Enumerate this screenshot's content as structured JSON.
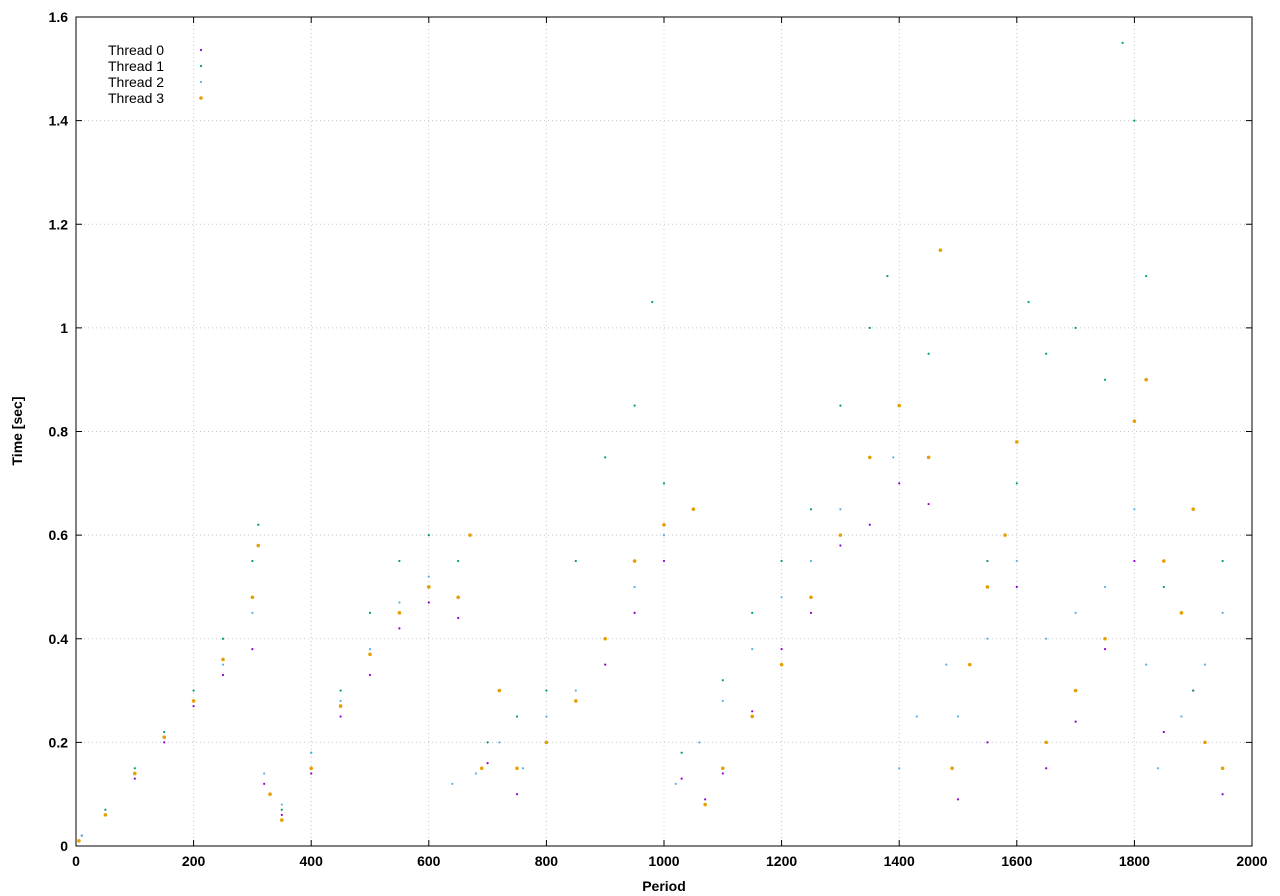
{
  "chart_data": {
    "type": "scatter",
    "title": "",
    "xlabel": "Period",
    "ylabel": "Time [sec]",
    "xlim": [
      0,
      2000
    ],
    "ylim": [
      0,
      1.6
    ],
    "xticks": [
      0,
      200,
      400,
      600,
      800,
      1000,
      1200,
      1400,
      1600,
      1800,
      2000
    ],
    "yticks": [
      0,
      0.2,
      0.4,
      0.6,
      0.8,
      1,
      1.2,
      1.4,
      1.6
    ],
    "xtick_labels": [
      "0",
      "200",
      "400",
      "600",
      "800",
      "1000",
      "1200",
      "1400",
      "1600",
      "1800",
      "2000"
    ],
    "ytick_labels": [
      "0",
      "0.2",
      "0.4",
      "0.6",
      "0.8",
      "1",
      "1.2",
      "1.4",
      "1.6"
    ],
    "grid": true,
    "legend_position": "top-left",
    "series": [
      {
        "name": "Thread 0",
        "color": "#9400d3",
        "marker": "dot",
        "points": [
          [
            10,
            0.02
          ],
          [
            50,
            0.06
          ],
          [
            100,
            0.13
          ],
          [
            150,
            0.2
          ],
          [
            200,
            0.27
          ],
          [
            250,
            0.33
          ],
          [
            300,
            0.38
          ],
          [
            320,
            0.12
          ],
          [
            350,
            0.06
          ],
          [
            400,
            0.14
          ],
          [
            450,
            0.25
          ],
          [
            500,
            0.33
          ],
          [
            550,
            0.42
          ],
          [
            600,
            0.47
          ],
          [
            650,
            0.44
          ],
          [
            700,
            0.16
          ],
          [
            750,
            0.1
          ],
          [
            800,
            0.2
          ],
          [
            850,
            0.28
          ],
          [
            900,
            0.35
          ],
          [
            950,
            0.45
          ],
          [
            1000,
            0.55
          ],
          [
            1030,
            0.13
          ],
          [
            1070,
            0.09
          ],
          [
            1100,
            0.14
          ],
          [
            1150,
            0.26
          ],
          [
            1200,
            0.38
          ],
          [
            1250,
            0.45
          ],
          [
            1300,
            0.58
          ],
          [
            1350,
            0.62
          ],
          [
            1400,
            0.7
          ],
          [
            1450,
            0.66
          ],
          [
            1500,
            0.09
          ],
          [
            1550,
            0.2
          ],
          [
            1600,
            0.5
          ],
          [
            1650,
            0.15
          ],
          [
            1700,
            0.24
          ],
          [
            1750,
            0.38
          ],
          [
            1800,
            0.55
          ],
          [
            1850,
            0.22
          ],
          [
            1900,
            0.3
          ],
          [
            1950,
            0.1
          ]
        ]
      },
      {
        "name": "Thread 1",
        "color": "#009e73",
        "marker": "dot",
        "points": [
          [
            10,
            0.02
          ],
          [
            50,
            0.07
          ],
          [
            100,
            0.15
          ],
          [
            150,
            0.22
          ],
          [
            200,
            0.3
          ],
          [
            250,
            0.4
          ],
          [
            300,
            0.55
          ],
          [
            310,
            0.62
          ],
          [
            330,
            0.1
          ],
          [
            350,
            0.07
          ],
          [
            400,
            0.18
          ],
          [
            450,
            0.3
          ],
          [
            500,
            0.45
          ],
          [
            550,
            0.55
          ],
          [
            600,
            0.6
          ],
          [
            650,
            0.55
          ],
          [
            700,
            0.2
          ],
          [
            750,
            0.25
          ],
          [
            800,
            0.3
          ],
          [
            850,
            0.55
          ],
          [
            900,
            0.75
          ],
          [
            950,
            0.85
          ],
          [
            980,
            1.05
          ],
          [
            1000,
            0.7
          ],
          [
            1030,
            0.18
          ],
          [
            1100,
            0.32
          ],
          [
            1150,
            0.45
          ],
          [
            1200,
            0.55
          ],
          [
            1250,
            0.65
          ],
          [
            1300,
            0.85
          ],
          [
            1350,
            1.0
          ],
          [
            1380,
            1.1
          ],
          [
            1400,
            0.85
          ],
          [
            1450,
            0.95
          ],
          [
            1550,
            0.55
          ],
          [
            1600,
            0.7
          ],
          [
            1620,
            1.05
          ],
          [
            1650,
            0.95
          ],
          [
            1700,
            1.0
          ],
          [
            1750,
            0.9
          ],
          [
            1780,
            1.55
          ],
          [
            1800,
            1.4
          ],
          [
            1820,
            1.1
          ],
          [
            1850,
            0.5
          ],
          [
            1900,
            0.3
          ],
          [
            1950,
            0.55
          ]
        ]
      },
      {
        "name": "Thread 2",
        "color": "#56b4e9",
        "marker": "dot",
        "points": [
          [
            10,
            0.02
          ],
          [
            50,
            0.06
          ],
          [
            100,
            0.14
          ],
          [
            150,
            0.21
          ],
          [
            200,
            0.28
          ],
          [
            250,
            0.35
          ],
          [
            300,
            0.45
          ],
          [
            320,
            0.14
          ],
          [
            350,
            0.08
          ],
          [
            400,
            0.18
          ],
          [
            450,
            0.28
          ],
          [
            500,
            0.38
          ],
          [
            550,
            0.47
          ],
          [
            600,
            0.52
          ],
          [
            640,
            0.12
          ],
          [
            680,
            0.14
          ],
          [
            720,
            0.2
          ],
          [
            760,
            0.15
          ],
          [
            800,
            0.25
          ],
          [
            850,
            0.3
          ],
          [
            900,
            0.4
          ],
          [
            950,
            0.5
          ],
          [
            1000,
            0.6
          ],
          [
            1020,
            0.12
          ],
          [
            1060,
            0.2
          ],
          [
            1100,
            0.28
          ],
          [
            1150,
            0.38
          ],
          [
            1200,
            0.48
          ],
          [
            1250,
            0.55
          ],
          [
            1300,
            0.65
          ],
          [
            1350,
            0.75
          ],
          [
            1390,
            0.75
          ],
          [
            1400,
            0.15
          ],
          [
            1430,
            0.25
          ],
          [
            1480,
            0.35
          ],
          [
            1500,
            0.25
          ],
          [
            1550,
            0.4
          ],
          [
            1600,
            0.55
          ],
          [
            1650,
            0.4
          ],
          [
            1700,
            0.45
          ],
          [
            1750,
            0.5
          ],
          [
            1800,
            0.65
          ],
          [
            1820,
            0.35
          ],
          [
            1840,
            0.15
          ],
          [
            1880,
            0.25
          ],
          [
            1920,
            0.35
          ],
          [
            1950,
            0.45
          ]
        ]
      },
      {
        "name": "Thread 3",
        "color": "#e69f00",
        "marker": "point",
        "points": [
          [
            5,
            0.01
          ],
          [
            50,
            0.06
          ],
          [
            100,
            0.14
          ],
          [
            150,
            0.21
          ],
          [
            200,
            0.28
          ],
          [
            250,
            0.36
          ],
          [
            300,
            0.48
          ],
          [
            310,
            0.58
          ],
          [
            330,
            0.1
          ],
          [
            350,
            0.05
          ],
          [
            400,
            0.15
          ],
          [
            450,
            0.27
          ],
          [
            500,
            0.37
          ],
          [
            550,
            0.45
          ],
          [
            600,
            0.5
          ],
          [
            650,
            0.48
          ],
          [
            670,
            0.6
          ],
          [
            690,
            0.15
          ],
          [
            720,
            0.3
          ],
          [
            750,
            0.15
          ],
          [
            800,
            0.2
          ],
          [
            850,
            0.28
          ],
          [
            900,
            0.4
          ],
          [
            950,
            0.55
          ],
          [
            1000,
            0.62
          ],
          [
            1050,
            0.65
          ],
          [
            1070,
            0.08
          ],
          [
            1100,
            0.15
          ],
          [
            1150,
            0.25
          ],
          [
            1200,
            0.35
          ],
          [
            1250,
            0.48
          ],
          [
            1300,
            0.6
          ],
          [
            1350,
            0.75
          ],
          [
            1400,
            0.85
          ],
          [
            1450,
            0.75
          ],
          [
            1470,
            1.15
          ],
          [
            1490,
            0.15
          ],
          [
            1520,
            0.35
          ],
          [
            1550,
            0.5
          ],
          [
            1580,
            0.6
          ],
          [
            1600,
            0.78
          ],
          [
            1650,
            0.2
          ],
          [
            1700,
            0.3
          ],
          [
            1750,
            0.4
          ],
          [
            1800,
            0.82
          ],
          [
            1820,
            0.9
          ],
          [
            1850,
            0.55
          ],
          [
            1880,
            0.45
          ],
          [
            1900,
            0.65
          ],
          [
            1920,
            0.2
          ],
          [
            1950,
            0.15
          ]
        ]
      }
    ]
  }
}
